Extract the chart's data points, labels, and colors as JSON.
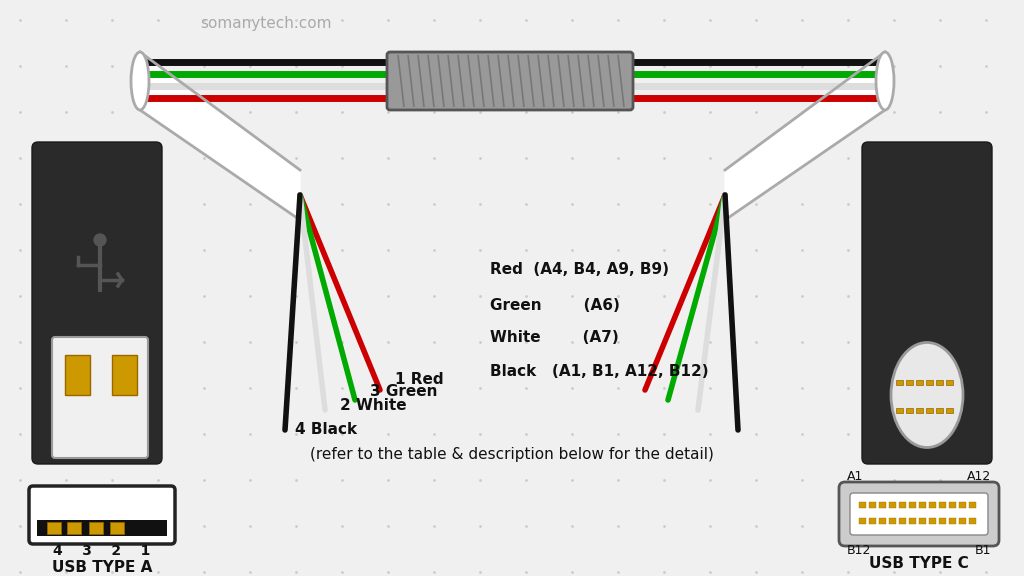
{
  "bg_color": "#f0f0f0",
  "title": "somanytech.com",
  "wire_colors_horiz": [
    "#111111",
    "#00aa00",
    "#dddddd",
    "#cc0000"
  ],
  "fan_colors": [
    "#cc0000",
    "#00aa00",
    "#dddddd",
    "#111111"
  ],
  "center_note": "(refer to the table & description below for the detail)",
  "usb_a_label": "USB TYPE A",
  "usb_c_label": "USB TYPE C",
  "left_labels": [
    {
      "text": "1 Red",
      "color": "#000000",
      "ha": "left"
    },
    {
      "text": "3 Green",
      "color": "#000000",
      "ha": "left"
    },
    {
      "text": "2 White",
      "color": "#000000",
      "ha": "left"
    },
    {
      "text": "4 Black",
      "color": "#000000",
      "ha": "left"
    }
  ],
  "right_labels": [
    {
      "text": "Red  (A4, B4, A9, B9)",
      "color": "#000000"
    },
    {
      "text": "Green        (A6)",
      "color": "#000000"
    },
    {
      "text": "White        (A7)",
      "color": "#000000"
    },
    {
      "text": "Black   (A1, B1, A12, B12)",
      "color": "#000000"
    }
  ]
}
